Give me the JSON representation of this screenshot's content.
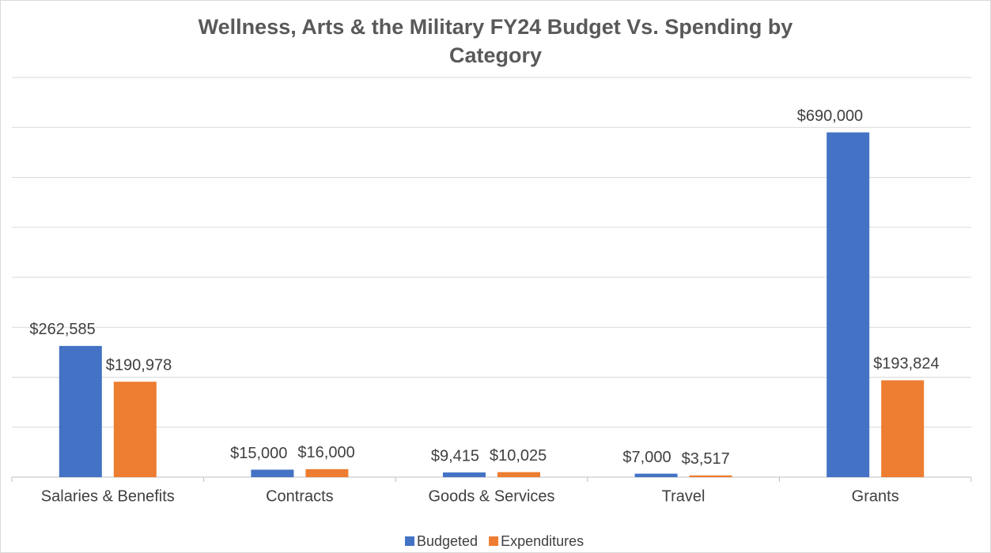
{
  "chart_data": {
    "type": "bar",
    "title": "Wellness, Arts & the Military FY24 Budget Vs. Spending by Category",
    "categories": [
      "Salaries & Benefits",
      "Contracts",
      "Goods & Services",
      "Travel",
      "Grants"
    ],
    "series": [
      {
        "name": "Budgeted",
        "color": "#4472c4",
        "values": [
          262585,
          15000,
          9415,
          7000,
          690000
        ],
        "value_labels": [
          "$262,585",
          "$15,000",
          "$9,415",
          "$7,000",
          "$690,000"
        ]
      },
      {
        "name": "Expenditures",
        "color": "#ed7d31",
        "values": [
          190978,
          16000,
          10025,
          3517,
          193824
        ],
        "value_labels": [
          "$190,978",
          "$16,000",
          "$10,025",
          "$3,517",
          "$193,824"
        ]
      }
    ],
    "ylim": [
      0,
      800000
    ],
    "yticks": [
      0,
      100000,
      200000,
      300000,
      400000,
      500000,
      600000,
      700000,
      800000
    ],
    "grid": true,
    "legend": "bottom"
  }
}
